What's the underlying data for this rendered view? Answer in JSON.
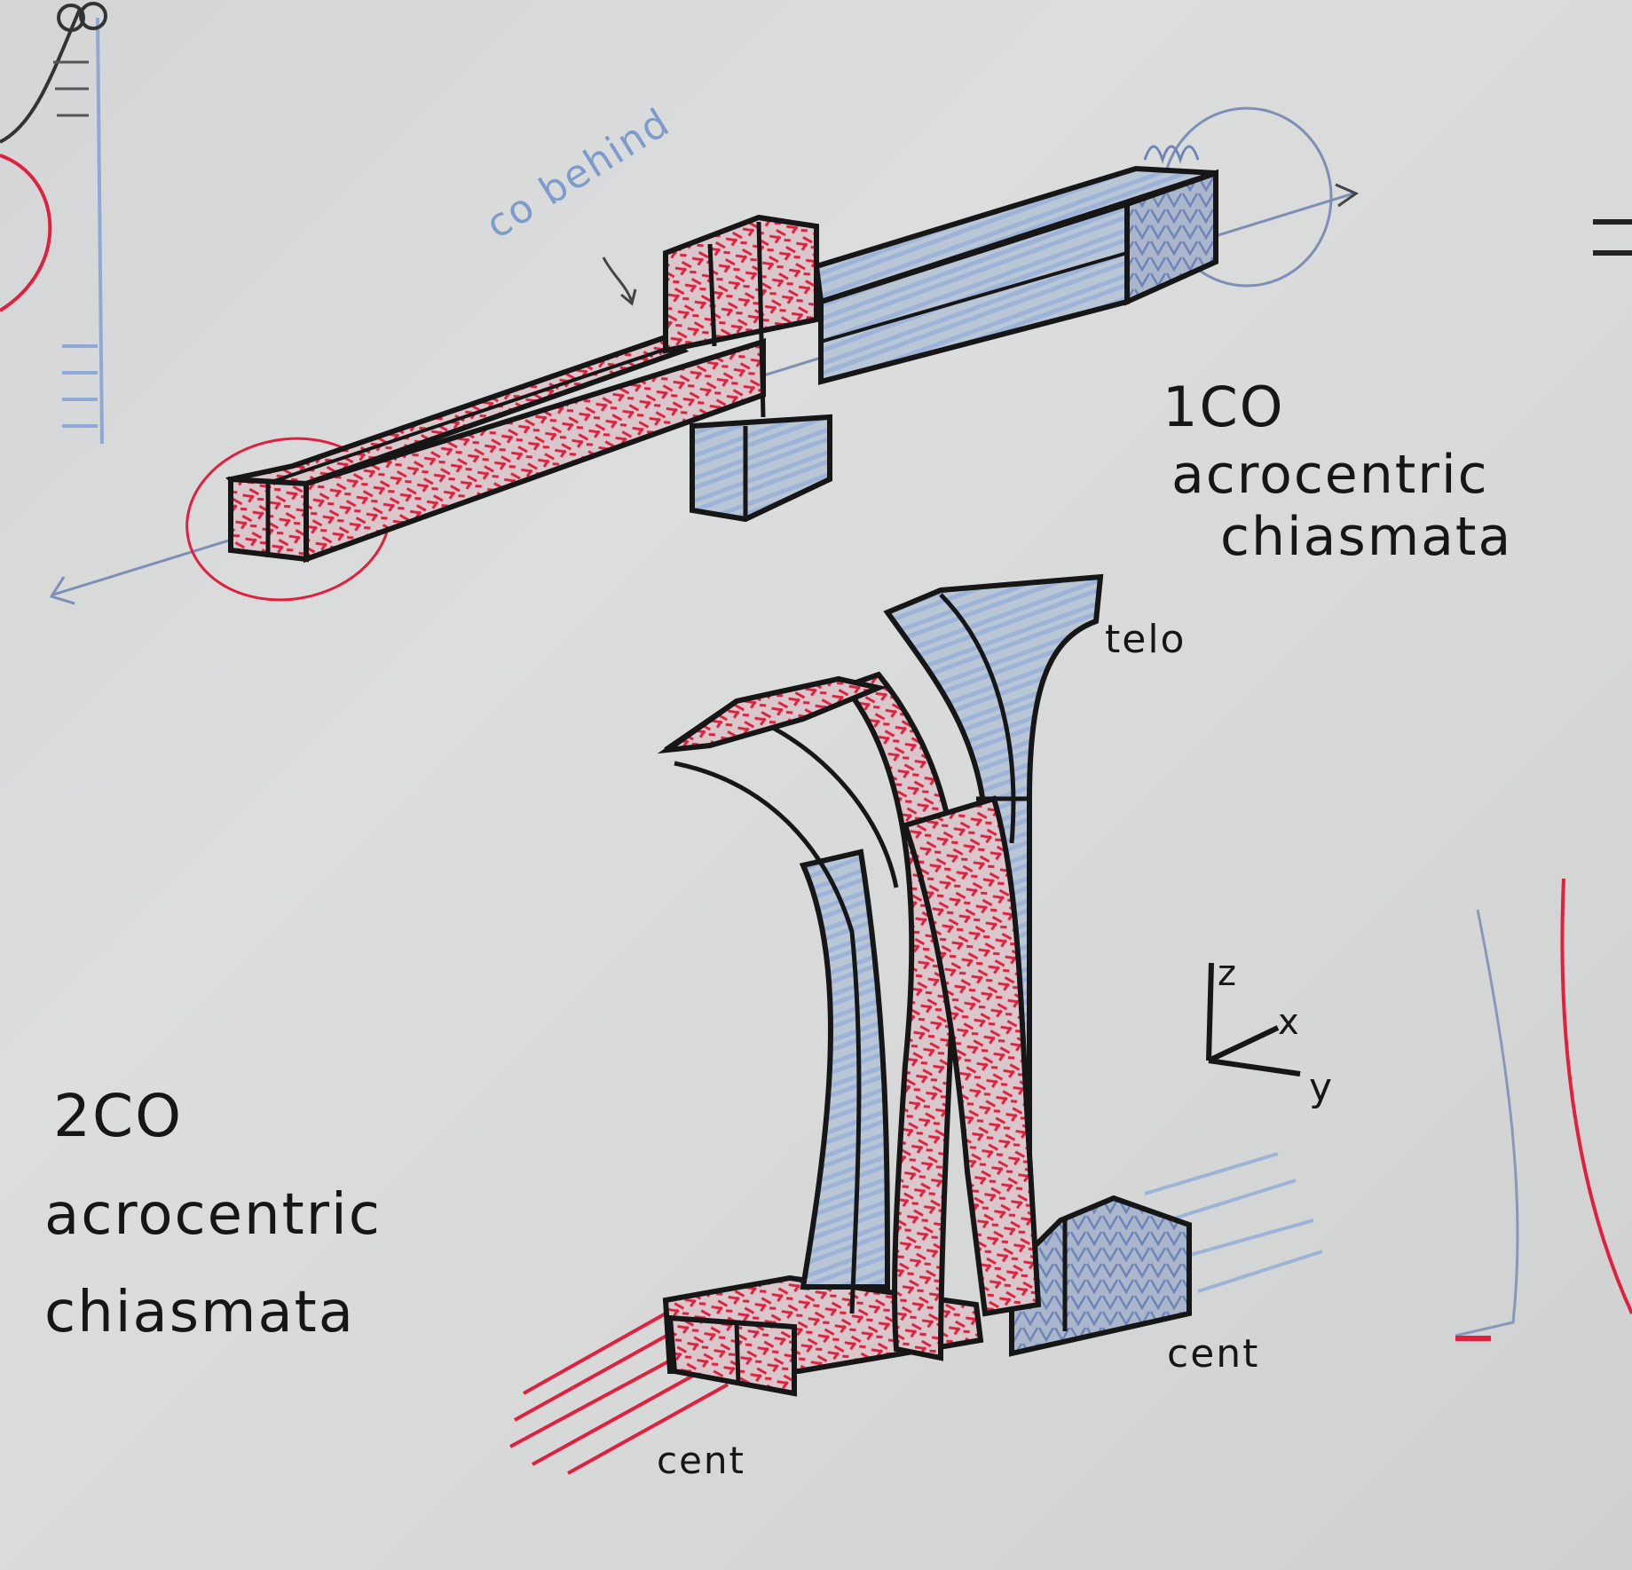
{
  "whiteboard": {
    "annotation_co_behind": "co behind",
    "label_1co": {
      "line1": "1CO",
      "line2": "acrocentric",
      "line3": "chiasmata"
    },
    "label_2co": {
      "line1": "2CO",
      "line2": "acrocentric",
      "line3": "chiasmata"
    },
    "label_telo": "telo",
    "label_cent_right": "cent",
    "label_cent_bottom": "cent",
    "axes": {
      "z": "z",
      "x": "x",
      "y": "y"
    }
  },
  "colors": {
    "board": "#d6d7d7",
    "ink_black": "#161616",
    "ink_red": "#e0203e",
    "ink_blue": "#8fa8d6",
    "ink_blue_dark": "#7d9bcb"
  }
}
